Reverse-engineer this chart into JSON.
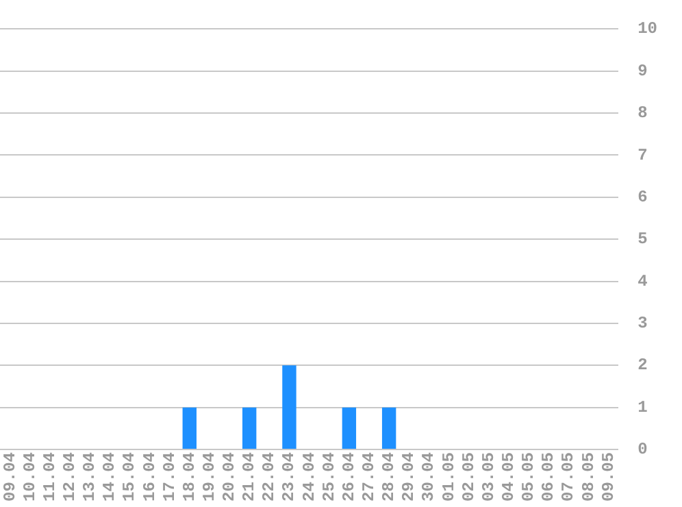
{
  "chart_data": {
    "type": "bar",
    "categories": [
      "09.04",
      "10.04",
      "11.04",
      "12.04",
      "13.04",
      "14.04",
      "15.04",
      "16.04",
      "17.04",
      "18.04",
      "19.04",
      "20.04",
      "21.04",
      "22.04",
      "23.04",
      "24.04",
      "25.04",
      "26.04",
      "27.04",
      "28.04",
      "29.04",
      "30.04",
      "01.05",
      "02.05",
      "03.05",
      "04.05",
      "05.05",
      "06.05",
      "07.05",
      "08.05",
      "09.05"
    ],
    "values": [
      0,
      0,
      0,
      0,
      0,
      0,
      0,
      0,
      0,
      1,
      0,
      0,
      1,
      0,
      2,
      0,
      0,
      1,
      0,
      1,
      0,
      0,
      0,
      0,
      0,
      0,
      0,
      0,
      0,
      0,
      0
    ],
    "color": "#1e90ff",
    "ylim": [
      0,
      10
    ],
    "yticks": [
      0,
      1,
      2,
      3,
      4,
      5,
      6,
      7,
      8,
      9,
      10
    ],
    "grid": "y",
    "legend": false
  }
}
